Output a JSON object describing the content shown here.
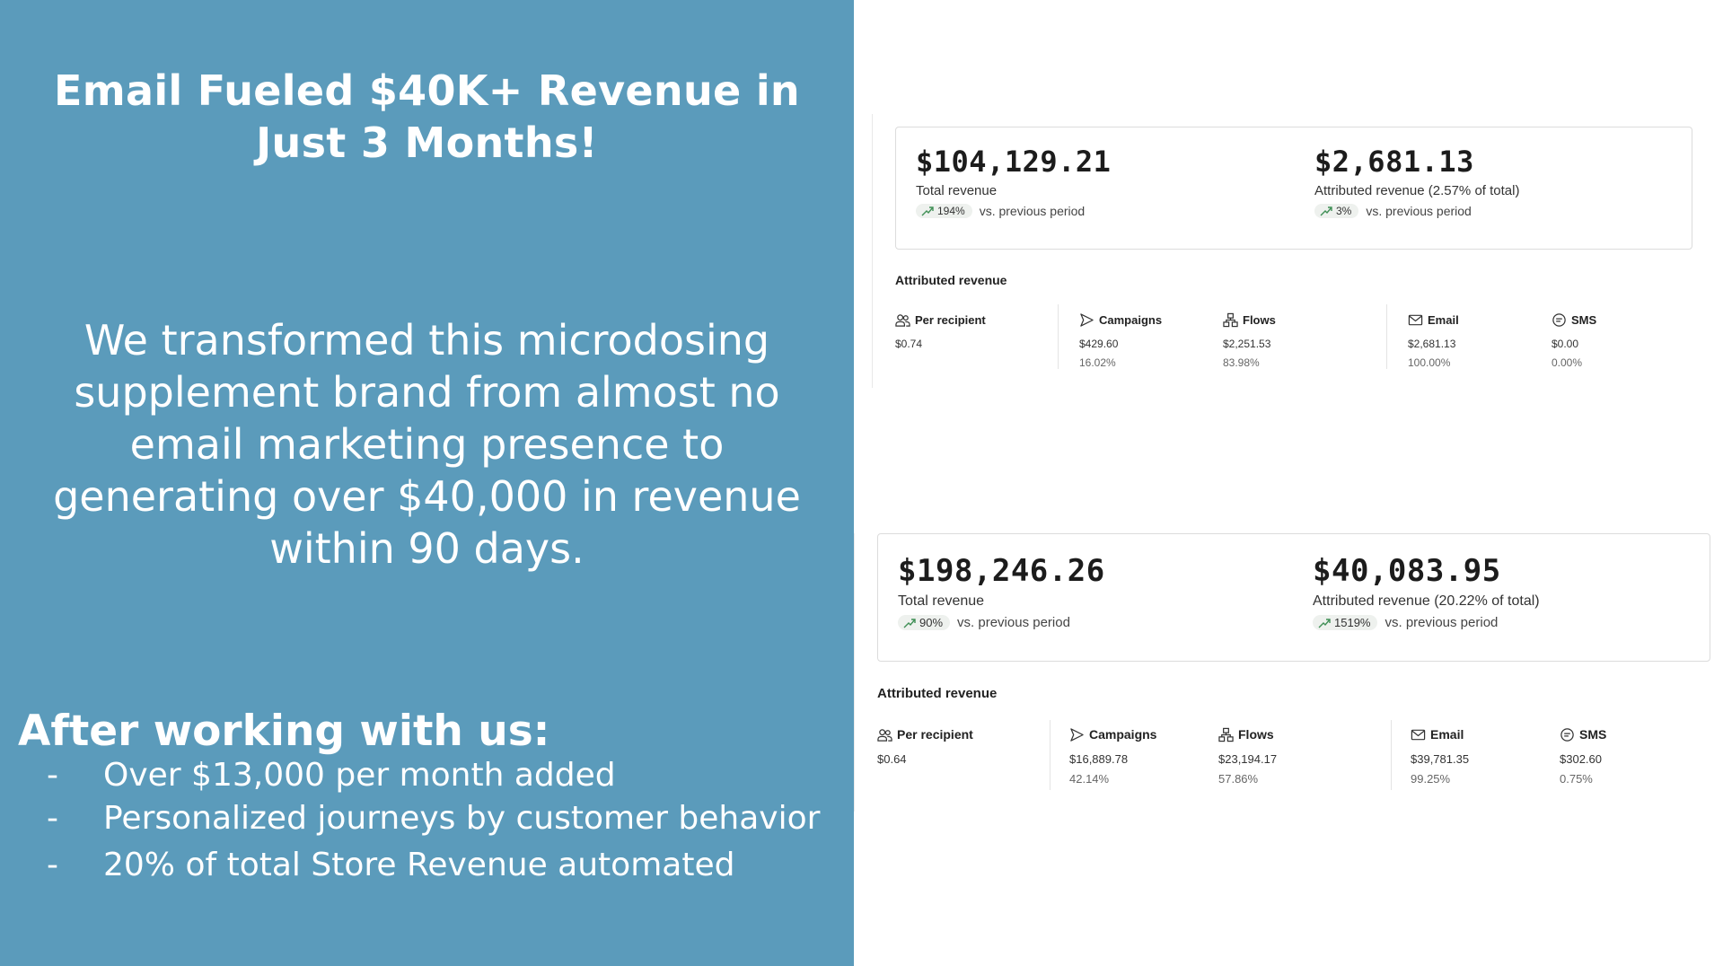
{
  "left": {
    "headline": "Email Fueled $40K+ Revenue in Just 3 Months!",
    "body": "We transformed this microdosing supplement brand from almost no email marketing presence to generating over $40,000 in revenue within 90 days.",
    "after_title": "After working with us:",
    "bullet_marker": "-",
    "benefits": [
      "Over $13,000 per month added",
      "Personalized journeys by customer behavior",
      "20% of total Store Revenue automated"
    ]
  },
  "dashboards": [
    {
      "total_revenue": "$104,129.21",
      "total_label": "Total revenue",
      "total_change": "194%",
      "attributed_revenue": "$2,681.13",
      "attributed_label": "Attributed revenue (2.57% of total)",
      "attributed_change": "3%",
      "comparison_text": "vs. previous period",
      "section_title": "Attributed revenue",
      "metrics": {
        "per_recipient": {
          "label": "Per recipient",
          "value": "$0.74"
        },
        "campaigns": {
          "label": "Campaigns",
          "value": "$429.60",
          "share": "16.02%"
        },
        "flows": {
          "label": "Flows",
          "value": "$2,251.53",
          "share": "83.98%"
        },
        "email": {
          "label": "Email",
          "value": "$2,681.13",
          "share": "100.00%"
        },
        "sms": {
          "label": "SMS",
          "value": "$0.00",
          "share": "0.00%"
        }
      }
    },
    {
      "total_revenue": "$198,246.26",
      "total_label": "Total revenue",
      "total_change": "90%",
      "attributed_revenue": "$40,083.95",
      "attributed_label": "Attributed revenue (20.22% of total)",
      "attributed_change": "1519%",
      "comparison_text": "vs. previous period",
      "section_title": "Attributed revenue",
      "metrics": {
        "per_recipient": {
          "label": "Per recipient",
          "value": "$0.64"
        },
        "campaigns": {
          "label": "Campaigns",
          "value": "$16,889.78",
          "share": "42.14%"
        },
        "flows": {
          "label": "Flows",
          "value": "$23,194.17",
          "share": "57.86%"
        },
        "email": {
          "label": "Email",
          "value": "$39,781.35",
          "share": "99.25%"
        },
        "sms": {
          "label": "SMS",
          "value": "$302.60",
          "share": "0.75%"
        }
      }
    }
  ],
  "icons": {
    "trend": "trend-up-icon",
    "per_recipient": "users-icon",
    "campaigns": "send-icon",
    "flows": "flow-icon",
    "email": "mail-icon",
    "sms": "chat-icon"
  },
  "colors": {
    "panel_blue": "#5b9bbb",
    "trend_green": "#3f8f55",
    "pill_bg": "#eef1ee"
  }
}
